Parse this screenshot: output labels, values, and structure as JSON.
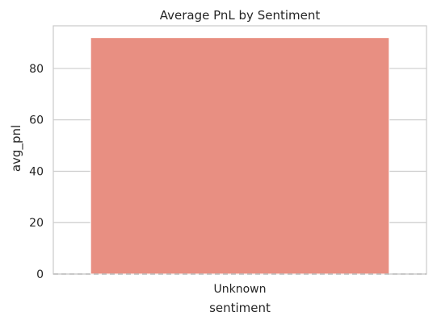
{
  "chart_data": {
    "type": "bar",
    "title": "Average PnL by Sentiment",
    "xlabel": "sentiment",
    "ylabel": "avg_pnl",
    "categories": [
      "Unknown"
    ],
    "values": [
      92
    ],
    "ylim": [
      0,
      96.6
    ],
    "yticks": [
      0,
      20,
      40,
      60,
      80
    ],
    "grid": true,
    "legend": "none",
    "reference_line": {
      "y": 0,
      "style": "dashed"
    },
    "colors": {
      "bar": "#e88f82",
      "grid": "#cccccc",
      "axes": "#cccccc",
      "text": "#262626",
      "reference_line": "#bdbdbd"
    }
  }
}
